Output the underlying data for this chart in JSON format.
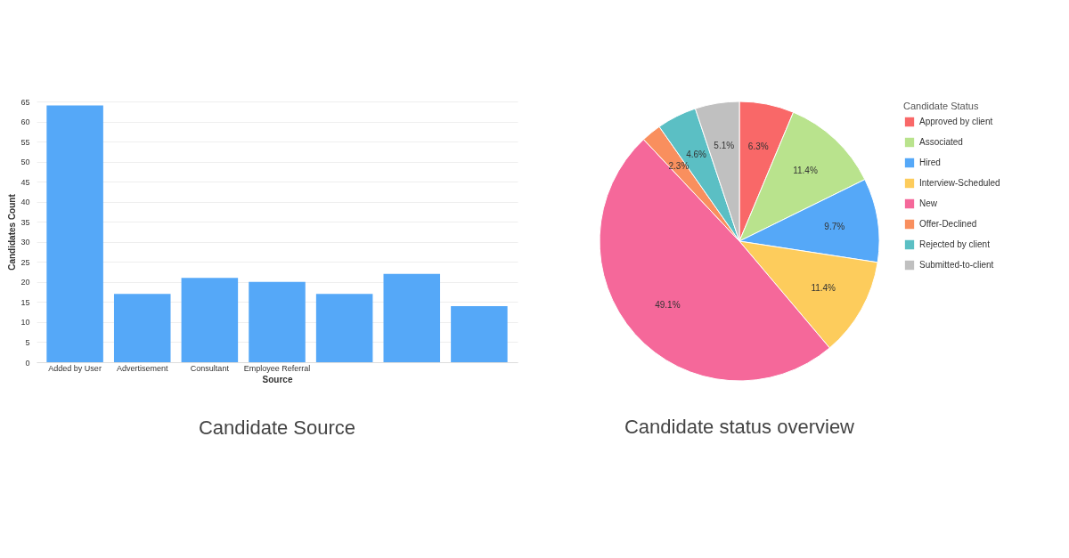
{
  "chart_data": [
    {
      "type": "bar",
      "title": "Candidate Source",
      "xlabel": "Source",
      "ylabel": "Candidates Count",
      "categories": [
        "Added by User",
        "Advertisement",
        "Consultant",
        "Employee Referral",
        null,
        null,
        null
      ],
      "values": [
        64,
        17,
        21,
        20,
        17,
        22,
        14
      ],
      "color": "#55a8f8",
      "ylim": [
        0,
        65
      ],
      "yticks": [
        0,
        5,
        10,
        15,
        20,
        25,
        30,
        35,
        40,
        45,
        50,
        55,
        60,
        65
      ],
      "grid": "y"
    },
    {
      "type": "pie",
      "title": "Candidate status overview",
      "legend_title": "Candidate Status",
      "legend": "right",
      "categories": [
        "Approved by client",
        "Associated",
        "Hired",
        "Interview-Scheduled",
        "New",
        "Offer-Declined",
        "Rejected by client",
        "Submitted-to-client"
      ],
      "values": [
        6.3,
        11.4,
        9.7,
        11.4,
        49.1,
        2.3,
        4.6,
        5.1
      ],
      "value_labels": [
        "6.3%",
        "11.4%",
        "9.7%",
        "11.4%",
        "49.1%",
        "2.3%",
        "4.6%",
        "5.1%"
      ],
      "colors": [
        "#f96868",
        "#b9e38d",
        "#55a8f8",
        "#fdcc5c",
        "#f5689a",
        "#f98f5e",
        "#5bbfc4",
        "#c0c0c0"
      ]
    }
  ]
}
